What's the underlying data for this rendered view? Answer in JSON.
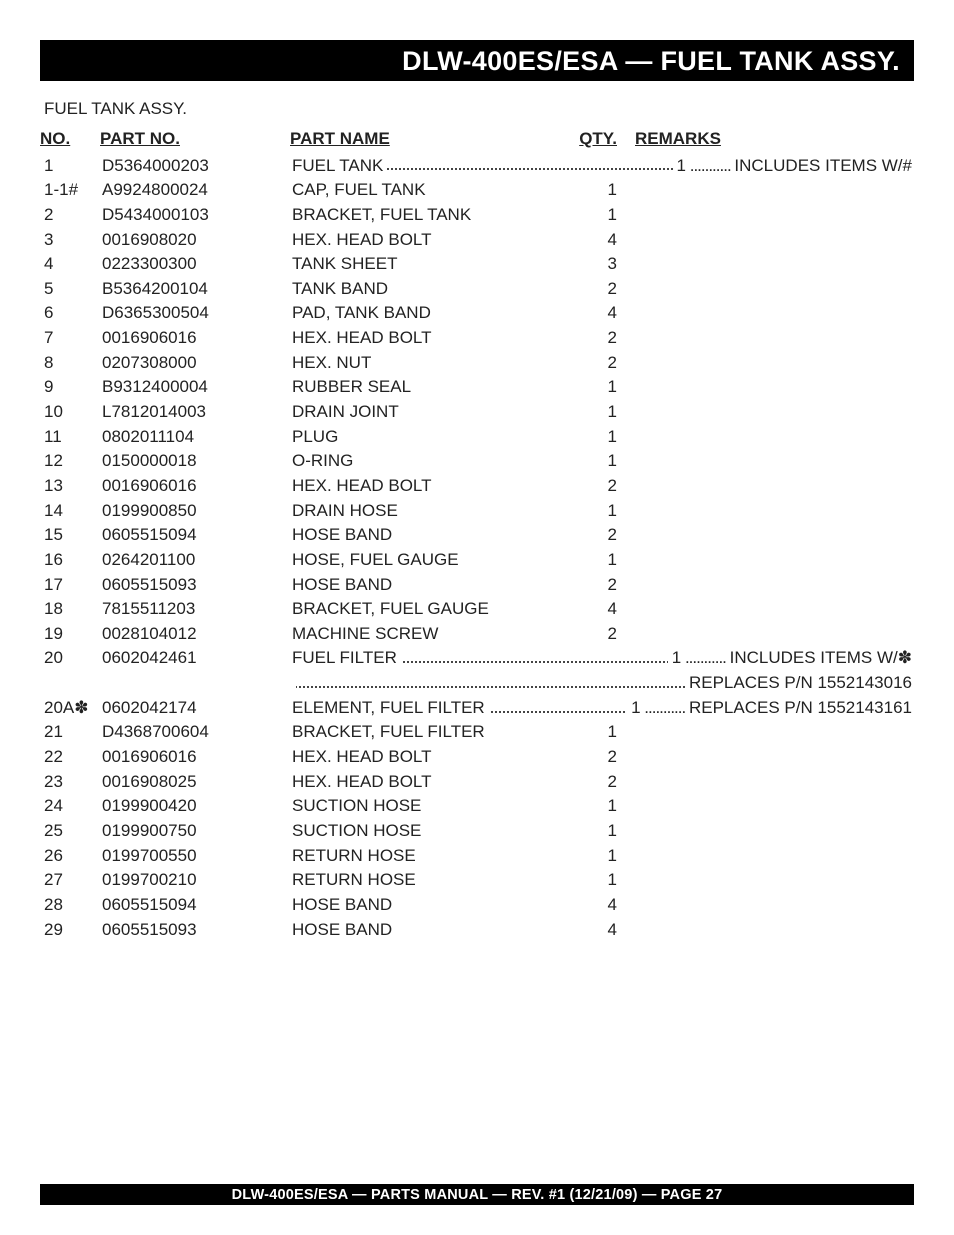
{
  "header": {
    "title": "DLW-400ES/ESA — FUEL TANK  ASSY."
  },
  "section_label": "FUEL TANK ASSY.",
  "table": {
    "headers": {
      "no": "NO.",
      "part_no": "PART NO.",
      "part_name": "PART NAME",
      "qty": "QTY.",
      "remarks": "REMARKS"
    },
    "rows": [
      {
        "no": "1",
        "part_no": "D5364000203",
        "dotted": true,
        "name_lead": "FUEL TANK",
        "qty_trail": "1",
        "remarks_trail": "INCLUDES ITEMS W/#"
      },
      {
        "no": "1-1#",
        "part_no": "A9924800024",
        "dotted": false,
        "part_name": "CAP, FUEL TANK",
        "qty": "1",
        "remarks": ""
      },
      {
        "no": "2",
        "part_no": "D5434000103",
        "dotted": false,
        "part_name": "BRACKET, FUEL TANK",
        "qty": "1",
        "remarks": ""
      },
      {
        "no": "3",
        "part_no": "0016908020",
        "dotted": false,
        "part_name": "HEX. HEAD BOLT",
        "qty": "4",
        "remarks": ""
      },
      {
        "no": "4",
        "part_no": "0223300300",
        "dotted": false,
        "part_name": "TANK SHEET",
        "qty": "3",
        "remarks": ""
      },
      {
        "no": "5",
        "part_no": "B5364200104",
        "dotted": false,
        "part_name": "TANK BAND",
        "qty": "2",
        "remarks": ""
      },
      {
        "no": "6",
        "part_no": "D6365300504",
        "dotted": false,
        "part_name": "PAD, TANK BAND",
        "qty": "4",
        "remarks": ""
      },
      {
        "no": "7",
        "part_no": "0016906016",
        "dotted": false,
        "part_name": "HEX. HEAD BOLT",
        "qty": "2",
        "remarks": ""
      },
      {
        "no": "8",
        "part_no": "0207308000",
        "dotted": false,
        "part_name": "HEX. NUT",
        "qty": "2",
        "remarks": ""
      },
      {
        "no": "9",
        "part_no": "B9312400004",
        "dotted": false,
        "part_name": "RUBBER SEAL",
        "qty": "1",
        "remarks": ""
      },
      {
        "no": "10",
        "part_no": "L7812014003",
        "dotted": false,
        "part_name": "DRAIN JOINT",
        "qty": "1",
        "remarks": ""
      },
      {
        "no": "11",
        "part_no": "0802011104",
        "dotted": false,
        "part_name": "PLUG",
        "qty": "1",
        "remarks": ""
      },
      {
        "no": "12",
        "part_no": "0150000018",
        "dotted": false,
        "part_name": "O-RING",
        "qty": "1",
        "remarks": ""
      },
      {
        "no": "13",
        "part_no": "0016906016",
        "dotted": false,
        "part_name": "HEX. HEAD BOLT",
        "qty": "2",
        "remarks": ""
      },
      {
        "no": "14",
        "part_no": "0199900850",
        "dotted": false,
        "part_name": "DRAIN HOSE",
        "qty": "1",
        "remarks": ""
      },
      {
        "no": "15",
        "part_no": "0605515094",
        "dotted": false,
        "part_name": "HOSE BAND",
        "qty": "2",
        "remarks": ""
      },
      {
        "no": "16",
        "part_no": "0264201100",
        "dotted": false,
        "part_name": "HOSE, FUEL GAUGE",
        "qty": "1",
        "remarks": ""
      },
      {
        "no": "17",
        "part_no": "0605515093",
        "dotted": false,
        "part_name": "HOSE BAND",
        "qty": "2",
        "remarks": ""
      },
      {
        "no": "18",
        "part_no": "7815511203",
        "dotted": false,
        "part_name": "BRACKET, FUEL GAUGE",
        "qty": "4",
        "remarks": ""
      },
      {
        "no": "19",
        "part_no": "0028104012",
        "dotted": false,
        "part_name": "MACHINE SCREW",
        "qty": "2",
        "remarks": ""
      },
      {
        "no": "20",
        "part_no": "0602042461",
        "dotted": true,
        "name_lead": "FUEL FILTER",
        "qty_trail": "1",
        "remarks_trail": "INCLUDES ITEMS W/✽"
      },
      {
        "no": "",
        "part_no": "",
        "dotted": true,
        "name_lead": "",
        "qty_trail": "",
        "remarks_trail": "REPLACES P/N 1552143016"
      },
      {
        "no": "20A✽",
        "part_no": "0602042174",
        "dotted": true,
        "name_lead": "ELEMENT, FUEL FILTER",
        "qty_trail": "1",
        "remarks_trail": "REPLACES P/N 1552143161"
      },
      {
        "no": "21",
        "part_no": "D4368700604",
        "dotted": false,
        "part_name": "BRACKET, FUEL FILTER",
        "qty": "1",
        "remarks": ""
      },
      {
        "no": "22",
        "part_no": "0016906016",
        "dotted": false,
        "part_name": "HEX. HEAD BOLT",
        "qty": "2",
        "remarks": ""
      },
      {
        "no": "23",
        "part_no": "0016908025",
        "dotted": false,
        "part_name": "HEX. HEAD BOLT",
        "qty": "2",
        "remarks": ""
      },
      {
        "no": "24",
        "part_no": "0199900420",
        "dotted": false,
        "part_name": "SUCTION HOSE",
        "qty": "1",
        "remarks": ""
      },
      {
        "no": "25",
        "part_no": "0199900750",
        "dotted": false,
        "part_name": "SUCTION HOSE",
        "qty": "1",
        "remarks": ""
      },
      {
        "no": "26",
        "part_no": "0199700550",
        "dotted": false,
        "part_name": "RETURN HOSE",
        "qty": "1",
        "remarks": ""
      },
      {
        "no": "27",
        "part_no": "0199700210",
        "dotted": false,
        "part_name": "RETURN HOSE",
        "qty": "1",
        "remarks": ""
      },
      {
        "no": "28",
        "part_no": "0605515094",
        "dotted": false,
        "part_name": "HOSE BAND",
        "qty": "4",
        "remarks": ""
      },
      {
        "no": "29",
        "part_no": "0605515093",
        "dotted": false,
        "part_name": "HOSE BAND",
        "qty": "4",
        "remarks": ""
      }
    ]
  },
  "footer": {
    "text": "DLW-400ES/ESA —  PARTS MANUAL — REV. #1  (12/21/09) — PAGE 27"
  }
}
